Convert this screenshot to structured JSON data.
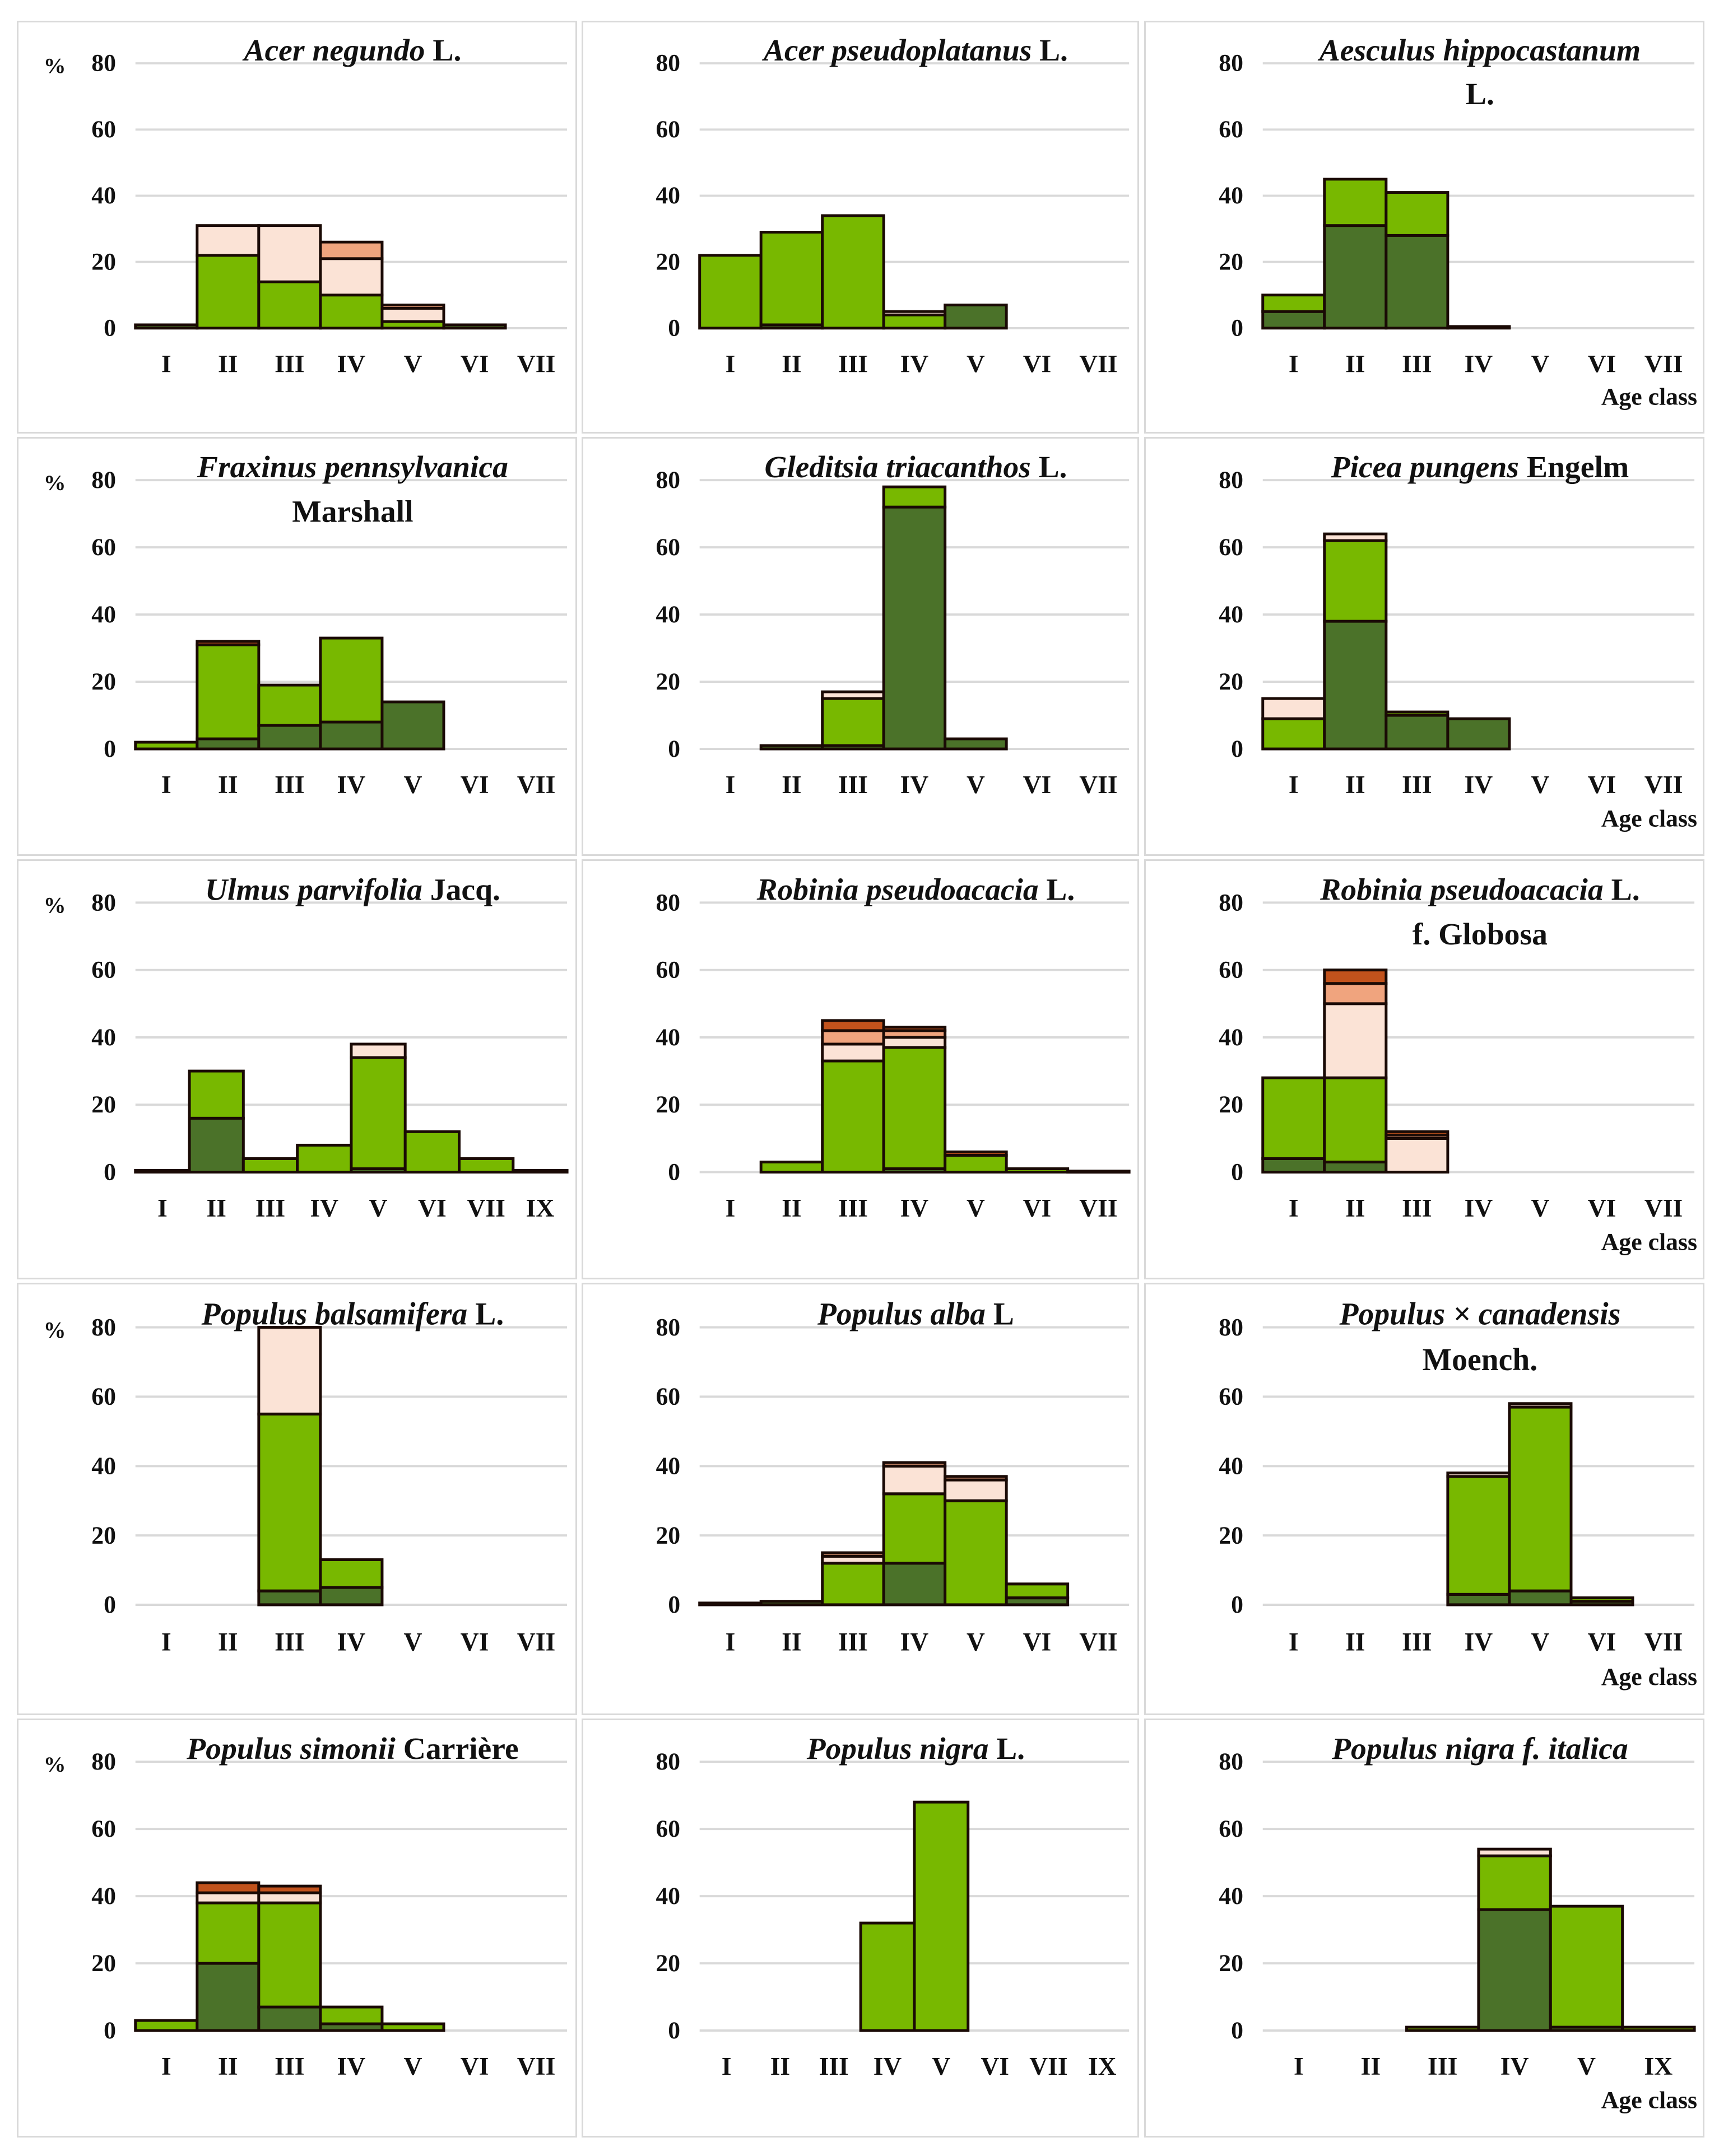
{
  "chart_data": {
    "type": "bar",
    "stacked": true,
    "ylabel": "%",
    "xlabel": "Age class",
    "ylim": [
      0,
      80
    ],
    "yticks": [
      0,
      20,
      40,
      60,
      80
    ],
    "grid": true,
    "series_colors": [
      "#4b7229",
      "#78b800",
      "#fbe3d6",
      "#f0a47e",
      "#c2521c"
    ],
    "panels": [
      {
        "title_italic": "Acer negundo",
        "title_suffix": " L.",
        "title_line2": "",
        "percent_label": "%",
        "age_label": "",
        "categories": [
          "I",
          "II",
          "III",
          "IV",
          "V",
          "VI",
          "VII"
        ],
        "stacks": [
          [
            1,
            0,
            0,
            0,
            0
          ],
          [
            0,
            22,
            9,
            0,
            0
          ],
          [
            0,
            14,
            17,
            0,
            0
          ],
          [
            0,
            10,
            11,
            5,
            0
          ],
          [
            0,
            2,
            4,
            1,
            0
          ],
          [
            1,
            0,
            0,
            0,
            0
          ],
          [
            0,
            0,
            0,
            0,
            0
          ]
        ]
      },
      {
        "title_italic": "Acer pseudoplatanus",
        "title_suffix": " L.",
        "title_line2": "",
        "percent_label": "",
        "age_label": "",
        "categories": [
          "I",
          "II",
          "III",
          "IV",
          "V",
          "VI",
          "VII"
        ],
        "stacks": [
          [
            0,
            22,
            0,
            0,
            0
          ],
          [
            1,
            28,
            0,
            0,
            0
          ],
          [
            0,
            34,
            0,
            0,
            0
          ],
          [
            0,
            4,
            1,
            0,
            0
          ],
          [
            7,
            0,
            0,
            0,
            0
          ],
          [
            0,
            0,
            0,
            0,
            0
          ],
          [
            0,
            0,
            0,
            0,
            0
          ]
        ]
      },
      {
        "title_italic": "Aesculus hippocastanum",
        "title_suffix": "",
        "title_line2": "L.",
        "percent_label": "",
        "age_label": "Age class",
        "categories": [
          "I",
          "II",
          "III",
          "IV",
          "V",
          "VI",
          "VII"
        ],
        "stacks": [
          [
            5,
            5,
            0,
            0,
            0
          ],
          [
            31,
            14,
            0,
            0,
            0
          ],
          [
            28,
            13,
            0,
            0,
            0
          ],
          [
            0.5,
            0,
            0,
            0,
            0
          ],
          [
            0,
            0,
            0,
            0,
            0
          ],
          [
            0,
            0,
            0,
            0,
            0
          ],
          [
            0,
            0,
            0,
            0,
            0
          ]
        ]
      },
      {
        "title_italic": "Fraxinus pennsylvanica",
        "title_suffix": "",
        "title_line2": "Marshall",
        "percent_label": "%",
        "age_label": "",
        "categories": [
          "I",
          "II",
          "III",
          "IV",
          "V",
          "VI",
          "VII"
        ],
        "stacks": [
          [
            0,
            2,
            0,
            0,
            0
          ],
          [
            3,
            28,
            0,
            0,
            1
          ],
          [
            7,
            12,
            0,
            0,
            0
          ],
          [
            8,
            25,
            0,
            0,
            0
          ],
          [
            14,
            0,
            0,
            0,
            0
          ],
          [
            0,
            0,
            0,
            0,
            0
          ],
          [
            0,
            0,
            0,
            0,
            0
          ]
        ]
      },
      {
        "title_italic": "Gleditsia triacanthos",
        "title_suffix": " L.",
        "title_line2": "",
        "percent_label": "",
        "age_label": "",
        "categories": [
          "I",
          "II",
          "III",
          "IV",
          "V",
          "VI",
          "VII"
        ],
        "stacks": [
          [
            0,
            0,
            0,
            0,
            0
          ],
          [
            1,
            0,
            0,
            0,
            0
          ],
          [
            1,
            14,
            2,
            0,
            0
          ],
          [
            72,
            6,
            0,
            0,
            0
          ],
          [
            3,
            0,
            0,
            0,
            0
          ],
          [
            0,
            0,
            0,
            0,
            0
          ],
          [
            0,
            0,
            0,
            0,
            0
          ]
        ]
      },
      {
        "title_italic": "Picea pungens",
        "title_suffix": " Engelm",
        "title_line2": "",
        "percent_label": "",
        "age_label": "Age class",
        "categories": [
          "I",
          "II",
          "III",
          "IV",
          "V",
          "VI",
          "VII"
        ],
        "stacks": [
          [
            0,
            9,
            6,
            0,
            0
          ],
          [
            38,
            24,
            2,
            0,
            0
          ],
          [
            10,
            1,
            0,
            0,
            0
          ],
          [
            9,
            0,
            0,
            0,
            0
          ],
          [
            0,
            0,
            0,
            0,
            0
          ],
          [
            0,
            0,
            0,
            0,
            0
          ],
          [
            0,
            0,
            0,
            0,
            0
          ]
        ]
      },
      {
        "title_italic": "Ulmus parvifolia",
        "title_suffix": " Jacq.",
        "title_line2": "",
        "percent_label": "%",
        "age_label": "",
        "categories": [
          "I",
          "II",
          "III",
          "IV",
          "V",
          "VI",
          "VII",
          "IX"
        ],
        "stacks": [
          [
            0.5,
            0,
            0,
            0,
            0
          ],
          [
            16,
            14,
            0,
            0,
            0
          ],
          [
            0,
            4,
            0,
            0,
            0
          ],
          [
            0,
            8,
            0,
            0,
            0
          ],
          [
            1,
            33,
            4,
            0,
            0
          ],
          [
            0,
            12,
            0,
            0,
            0
          ],
          [
            0,
            4,
            0,
            0,
            0
          ],
          [
            0,
            0.5,
            0,
            0,
            0
          ]
        ]
      },
      {
        "title_italic": "Robinia pseudoacacia",
        "title_suffix": " L.",
        "title_line2": "",
        "percent_label": "",
        "age_label": "",
        "categories": [
          "I",
          "II",
          "III",
          "IV",
          "V",
          "VI",
          "VII"
        ],
        "stacks": [
          [
            0,
            0,
            0,
            0,
            0
          ],
          [
            0,
            3,
            0,
            0,
            0
          ],
          [
            0,
            33,
            5,
            4,
            3
          ],
          [
            1,
            36,
            3,
            2,
            1
          ],
          [
            0,
            5,
            0,
            0,
            1
          ],
          [
            0,
            1,
            0,
            0,
            0
          ],
          [
            0.3,
            0,
            0,
            0,
            0
          ]
        ]
      },
      {
        "title_italic": "Robinia pseudoacacia",
        "title_suffix": " L.",
        "title_line2": "f. Globosa",
        "percent_label": "",
        "age_label": "Age class",
        "categories": [
          "I",
          "II",
          "III",
          "IV",
          "V",
          "VI",
          "VII"
        ],
        "stacks": [
          [
            4,
            24,
            0,
            0,
            0
          ],
          [
            3,
            25,
            22,
            6,
            4
          ],
          [
            0,
            0,
            10,
            1,
            1
          ],
          [
            0,
            0,
            0,
            0,
            0
          ],
          [
            0,
            0,
            0,
            0,
            0
          ],
          [
            0,
            0,
            0,
            0,
            0
          ],
          [
            0,
            0,
            0,
            0,
            0
          ]
        ]
      },
      {
        "title_italic": "Populus balsamifera",
        "title_suffix": " L.",
        "title_line2": "",
        "percent_label": "%",
        "age_label": "",
        "categories": [
          "I",
          "II",
          "III",
          "IV",
          "V",
          "VI",
          "VII"
        ],
        "stacks": [
          [
            0,
            0,
            0,
            0,
            0
          ],
          [
            0,
            0,
            0,
            0,
            0
          ],
          [
            4,
            51,
            25,
            0,
            0
          ],
          [
            5,
            8,
            0,
            0,
            0
          ],
          [
            0,
            0,
            0,
            0,
            0
          ],
          [
            0,
            0,
            0,
            0,
            0
          ],
          [
            0,
            0,
            0,
            0,
            0
          ]
        ]
      },
      {
        "title_italic": "Populus alba",
        "title_suffix": " L",
        "title_line2": "",
        "percent_label": "",
        "age_label": "",
        "categories": [
          "I",
          "II",
          "III",
          "IV",
          "V",
          "VI",
          "VII"
        ],
        "stacks": [
          [
            0.5,
            0,
            0,
            0,
            0
          ],
          [
            1,
            0,
            0,
            0,
            0
          ],
          [
            0,
            12,
            2,
            1,
            0
          ],
          [
            12,
            20,
            8,
            1,
            0
          ],
          [
            0,
            30,
            6,
            1,
            0
          ],
          [
            2,
            4,
            0,
            0,
            0
          ],
          [
            0,
            0,
            0,
            0,
            0
          ]
        ]
      },
      {
        "title_italic": "Populus × canadensis",
        "title_suffix": "",
        "title_line2": "Moench.",
        "percent_label": "",
        "age_label": "Age class",
        "categories": [
          "I",
          "II",
          "III",
          "IV",
          "V",
          "VI",
          "VII"
        ],
        "stacks": [
          [
            0,
            0,
            0,
            0,
            0
          ],
          [
            0,
            0,
            0,
            0,
            0
          ],
          [
            0,
            0,
            0,
            0,
            0
          ],
          [
            3,
            34,
            1,
            0,
            0
          ],
          [
            4,
            53,
            1,
            0,
            0
          ],
          [
            1,
            1,
            0,
            0,
            0
          ],
          [
            0,
            0,
            0,
            0,
            0
          ]
        ]
      },
      {
        "title_italic": "Populus simonii",
        "title_suffix": " Carrière",
        "title_line2": "",
        "percent_label": "%",
        "age_label": "",
        "categories": [
          "I",
          "II",
          "III",
          "IV",
          "V",
          "VI",
          "VII"
        ],
        "stacks": [
          [
            0,
            3,
            0,
            0,
            0
          ],
          [
            20,
            18,
            3,
            0,
            3
          ],
          [
            7,
            31,
            3,
            0,
            2
          ],
          [
            2,
            5,
            0,
            0,
            0
          ],
          [
            0,
            2,
            0,
            0,
            0
          ],
          [
            0,
            0,
            0,
            0,
            0
          ],
          [
            0,
            0,
            0,
            0,
            0
          ]
        ]
      },
      {
        "title_italic": "Populus nigra",
        "title_suffix": " L.",
        "title_line2": "",
        "percent_label": "",
        "age_label": "",
        "categories": [
          "I",
          "II",
          "III",
          "IV",
          "V",
          "VI",
          "VII",
          "IX"
        ],
        "stacks": [
          [
            0,
            0,
            0,
            0,
            0
          ],
          [
            0,
            0,
            0,
            0,
            0
          ],
          [
            0,
            0,
            0,
            0,
            0
          ],
          [
            0,
            32,
            0,
            0,
            0
          ],
          [
            0,
            68,
            0,
            0,
            0
          ],
          [
            0,
            0,
            0,
            0,
            0
          ],
          [
            0,
            0,
            0,
            0,
            0
          ],
          [
            0,
            0,
            0,
            0,
            0
          ]
        ]
      },
      {
        "title_italic": "Populus nigra f. italica",
        "title_suffix": "",
        "title_line2": "",
        "percent_label": "",
        "age_label": "Age class",
        "categories": [
          "I",
          "II",
          "III",
          "IV",
          "V",
          "IX"
        ],
        "stacks": [
          [
            0,
            0,
            0,
            0,
            0
          ],
          [
            0,
            0,
            0,
            0,
            0
          ],
          [
            0,
            1,
            0,
            0,
            0
          ],
          [
            36,
            16,
            2,
            0,
            0
          ],
          [
            1,
            36,
            0,
            0,
            0
          ],
          [
            0,
            1,
            0,
            0,
            0
          ]
        ]
      }
    ]
  }
}
